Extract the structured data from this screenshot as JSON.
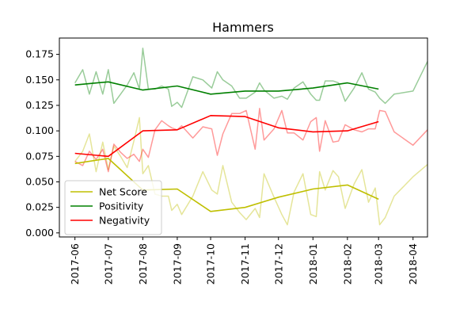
{
  "chart_data": {
    "type": "line",
    "title": "Hammers",
    "xlabel": "",
    "ylabel": "",
    "x_ticks": [
      "2017-06",
      "2017-07",
      "2017-08",
      "2017-09",
      "2017-10",
      "2017-11",
      "2017-12",
      "2018-01",
      "2018-02",
      "2018-03",
      "2018-04"
    ],
    "x_range": [
      "2017-05-18",
      "2018-04-14"
    ],
    "ylim": [
      -0.004,
      0.191
    ],
    "y_ticks": [
      0.0,
      0.025,
      0.05,
      0.075,
      0.1,
      0.125,
      0.15,
      0.175
    ],
    "y_tick_labels": [
      "0.000",
      "0.025",
      "0.050",
      "0.075",
      "0.100",
      "0.125",
      "0.150",
      "0.175"
    ],
    "grid": false,
    "legend_position": "lower-left",
    "series": [
      {
        "name": "Net Score",
        "color": "#bfbf00",
        "style": "solid-thick",
        "points": [
          [
            "2017-06-01",
            0.068
          ],
          [
            "2017-07-01",
            0.073
          ],
          [
            "2017-08-01",
            0.042
          ],
          [
            "2017-09-01",
            0.043
          ],
          [
            "2017-10-01",
            0.021
          ],
          [
            "2017-11-01",
            0.025
          ],
          [
            "2017-12-01",
            0.035
          ],
          [
            "2018-01-01",
            0.043
          ],
          [
            "2018-02-01",
            0.047
          ],
          [
            "2018-03-01",
            0.033
          ]
        ]
      },
      {
        "name": "Positivity",
        "color": "#008000",
        "style": "solid-thick",
        "points": [
          [
            "2017-06-01",
            0.145
          ],
          [
            "2017-07-01",
            0.148
          ],
          [
            "2017-08-01",
            0.14
          ],
          [
            "2017-09-01",
            0.144
          ],
          [
            "2017-10-01",
            0.136
          ],
          [
            "2017-11-01",
            0.139
          ],
          [
            "2017-12-01",
            0.139
          ],
          [
            "2018-01-01",
            0.142
          ],
          [
            "2018-02-01",
            0.147
          ],
          [
            "2018-03-01",
            0.141
          ]
        ]
      },
      {
        "name": "Negativity",
        "color": "#ff0000",
        "style": "solid-thick",
        "points": [
          [
            "2017-06-01",
            0.078
          ],
          [
            "2017-07-01",
            0.075
          ],
          [
            "2017-08-01",
            0.1
          ],
          [
            "2017-09-01",
            0.101
          ],
          [
            "2017-10-01",
            0.115
          ],
          [
            "2017-11-01",
            0.114
          ],
          [
            "2017-12-01",
            0.103
          ],
          [
            "2018-01-01",
            0.099
          ],
          [
            "2018-02-01",
            0.1
          ],
          [
            "2018-03-01",
            0.109
          ]
        ]
      },
      {
        "name": "",
        "color": "#bfbf00",
        "style": "faint",
        "points": [
          [
            "2017-06-01",
            0.07
          ],
          [
            "2017-06-08",
            0.08
          ],
          [
            "2017-06-14",
            0.097
          ],
          [
            "2017-06-20",
            0.06
          ],
          [
            "2017-06-26",
            0.089
          ],
          [
            "2017-07-01",
            0.062
          ],
          [
            "2017-07-06",
            0.085
          ],
          [
            "2017-07-12",
            0.075
          ],
          [
            "2017-07-18",
            0.064
          ],
          [
            "2017-07-24",
            0.09
          ],
          [
            "2017-07-29",
            0.113
          ],
          [
            "2017-08-01",
            0.058
          ],
          [
            "2017-08-06",
            0.066
          ],
          [
            "2017-08-12",
            0.038
          ],
          [
            "2017-08-18",
            0.036
          ],
          [
            "2017-08-24",
            0.036
          ],
          [
            "2017-08-27",
            0.022
          ],
          [
            "2017-09-01",
            0.028
          ],
          [
            "2017-09-05",
            0.018
          ],
          [
            "2017-09-15",
            0.036
          ],
          [
            "2017-09-24",
            0.06
          ],
          [
            "2017-10-02",
            0.042
          ],
          [
            "2017-10-07",
            0.038
          ],
          [
            "2017-10-12",
            0.066
          ],
          [
            "2017-10-20",
            0.03
          ],
          [
            "2017-10-27",
            0.02
          ],
          [
            "2017-11-02",
            0.013
          ],
          [
            "2017-11-10",
            0.024
          ],
          [
            "2017-11-14",
            0.015
          ],
          [
            "2017-11-18",
            0.058
          ],
          [
            "2017-11-27",
            0.035
          ],
          [
            "2017-12-04",
            0.018
          ],
          [
            "2017-12-09",
            0.008
          ],
          [
            "2017-12-15",
            0.04
          ],
          [
            "2017-12-23",
            0.058
          ],
          [
            "2017-12-30",
            0.018
          ],
          [
            "2018-01-04",
            0.016
          ],
          [
            "2018-01-07",
            0.06
          ],
          [
            "2018-01-12",
            0.042
          ],
          [
            "2018-01-19",
            0.061
          ],
          [
            "2018-01-24",
            0.055
          ],
          [
            "2018-01-30",
            0.024
          ],
          [
            "2018-02-07",
            0.048
          ],
          [
            "2018-02-14",
            0.062
          ],
          [
            "2018-02-20",
            0.03
          ],
          [
            "2018-02-26",
            0.044
          ],
          [
            "2018-03-02",
            0.008
          ],
          [
            "2018-03-07",
            0.015
          ],
          [
            "2018-03-15",
            0.036
          ],
          [
            "2018-04-01",
            0.055
          ],
          [
            "2018-04-14",
            0.067
          ]
        ]
      },
      {
        "name": "",
        "color": "#008000",
        "style": "faint",
        "points": [
          [
            "2017-06-01",
            0.147
          ],
          [
            "2017-06-08",
            0.16
          ],
          [
            "2017-06-14",
            0.136
          ],
          [
            "2017-06-20",
            0.158
          ],
          [
            "2017-06-26",
            0.136
          ],
          [
            "2017-07-01",
            0.16
          ],
          [
            "2017-07-06",
            0.127
          ],
          [
            "2017-07-12",
            0.136
          ],
          [
            "2017-07-18",
            0.145
          ],
          [
            "2017-07-24",
            0.157
          ],
          [
            "2017-07-29",
            0.141
          ],
          [
            "2017-08-01",
            0.181
          ],
          [
            "2017-08-06",
            0.141
          ],
          [
            "2017-08-12",
            0.141
          ],
          [
            "2017-08-18",
            0.144
          ],
          [
            "2017-08-24",
            0.141
          ],
          [
            "2017-08-27",
            0.124
          ],
          [
            "2017-09-01",
            0.128
          ],
          [
            "2017-09-05",
            0.123
          ],
          [
            "2017-09-15",
            0.153
          ],
          [
            "2017-09-24",
            0.15
          ],
          [
            "2017-10-02",
            0.142
          ],
          [
            "2017-10-07",
            0.158
          ],
          [
            "2017-10-12",
            0.15
          ],
          [
            "2017-10-20",
            0.144
          ],
          [
            "2017-10-27",
            0.132
          ],
          [
            "2017-11-02",
            0.132
          ],
          [
            "2017-11-10",
            0.138
          ],
          [
            "2017-11-14",
            0.147
          ],
          [
            "2017-11-18",
            0.14
          ],
          [
            "2017-11-27",
            0.132
          ],
          [
            "2017-12-04",
            0.134
          ],
          [
            "2017-12-09",
            0.131
          ],
          [
            "2017-12-15",
            0.142
          ],
          [
            "2017-12-23",
            0.148
          ],
          [
            "2017-12-30",
            0.136
          ],
          [
            "2018-01-04",
            0.13
          ],
          [
            "2018-01-07",
            0.13
          ],
          [
            "2018-01-12",
            0.149
          ],
          [
            "2018-01-19",
            0.149
          ],
          [
            "2018-01-24",
            0.147
          ],
          [
            "2018-01-30",
            0.129
          ],
          [
            "2018-02-07",
            0.142
          ],
          [
            "2018-02-14",
            0.157
          ],
          [
            "2018-02-20",
            0.141
          ],
          [
            "2018-02-26",
            0.138
          ],
          [
            "2018-03-02",
            0.132
          ],
          [
            "2018-03-07",
            0.127
          ],
          [
            "2018-03-15",
            0.136
          ],
          [
            "2018-04-01",
            0.139
          ],
          [
            "2018-04-14",
            0.168
          ]
        ]
      },
      {
        "name": "",
        "color": "#ff0000",
        "style": "faint",
        "points": [
          [
            "2017-06-01",
            0.07
          ],
          [
            "2017-06-08",
            0.066
          ],
          [
            "2017-06-14",
            0.08
          ],
          [
            "2017-06-20",
            0.072
          ],
          [
            "2017-06-26",
            0.082
          ],
          [
            "2017-07-01",
            0.06
          ],
          [
            "2017-07-06",
            0.087
          ],
          [
            "2017-07-12",
            0.079
          ],
          [
            "2017-07-18",
            0.073
          ],
          [
            "2017-07-24",
            0.077
          ],
          [
            "2017-07-29",
            0.07
          ],
          [
            "2017-08-01",
            0.082
          ],
          [
            "2017-08-06",
            0.074
          ],
          [
            "2017-08-12",
            0.101
          ],
          [
            "2017-08-18",
            0.11
          ],
          [
            "2017-08-24",
            0.105
          ],
          [
            "2017-08-27",
            0.103
          ],
          [
            "2017-09-01",
            0.101
          ],
          [
            "2017-09-05",
            0.105
          ],
          [
            "2017-09-15",
            0.093
          ],
          [
            "2017-09-24",
            0.104
          ],
          [
            "2017-10-02",
            0.102
          ],
          [
            "2017-10-07",
            0.076
          ],
          [
            "2017-10-12",
            0.097
          ],
          [
            "2017-10-20",
            0.117
          ],
          [
            "2017-10-27",
            0.117
          ],
          [
            "2017-11-02",
            0.12
          ],
          [
            "2017-11-10",
            0.082
          ],
          [
            "2017-11-14",
            0.122
          ],
          [
            "2017-11-18",
            0.091
          ],
          [
            "2017-11-27",
            0.102
          ],
          [
            "2017-12-04",
            0.12
          ],
          [
            "2017-12-09",
            0.098
          ],
          [
            "2017-12-15",
            0.098
          ],
          [
            "2017-12-23",
            0.091
          ],
          [
            "2017-12-30",
            0.109
          ],
          [
            "2018-01-04",
            0.113
          ],
          [
            "2018-01-07",
            0.08
          ],
          [
            "2018-01-12",
            0.11
          ],
          [
            "2018-01-19",
            0.089
          ],
          [
            "2018-01-24",
            0.09
          ],
          [
            "2018-01-30",
            0.106
          ],
          [
            "2018-02-07",
            0.101
          ],
          [
            "2018-02-14",
            0.099
          ],
          [
            "2018-02-20",
            0.102
          ],
          [
            "2018-02-26",
            0.102
          ],
          [
            "2018-03-02",
            0.12
          ],
          [
            "2018-03-07",
            0.119
          ],
          [
            "2018-03-15",
            0.099
          ],
          [
            "2018-04-01",
            0.086
          ],
          [
            "2018-04-14",
            0.101
          ]
        ]
      }
    ]
  }
}
